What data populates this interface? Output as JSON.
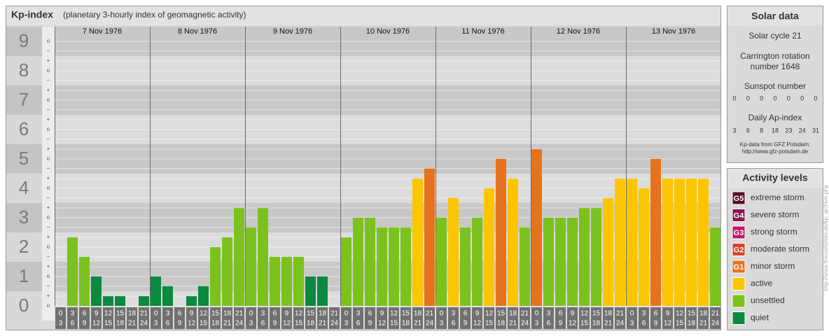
{
  "chart_data": {
    "type": "bar",
    "title": "Kp-index",
    "subtitle": "(planetary 3-hourly index of geomagnetic activity)",
    "ylim": [
      -0.5,
      9.5
    ],
    "yticks": [
      0,
      1,
      2,
      3,
      4,
      5,
      6,
      7,
      8,
      9
    ],
    "minor_yticks": [
      {
        "value": 0,
        "label": "o"
      },
      {
        "value": 0.33,
        "label": "+"
      },
      {
        "value": 0.67,
        "label": "−"
      },
      {
        "value": 1,
        "label": "o"
      },
      {
        "value": 1.33,
        "label": "+"
      },
      {
        "value": 1.67,
        "label": "−"
      },
      {
        "value": 2,
        "label": "o"
      },
      {
        "value": 2.33,
        "label": "+"
      },
      {
        "value": 2.67,
        "label": "−"
      },
      {
        "value": 3,
        "label": "o"
      },
      {
        "value": 3.33,
        "label": "+"
      },
      {
        "value": 3.67,
        "label": "−"
      },
      {
        "value": 4,
        "label": "o"
      },
      {
        "value": 4.33,
        "label": "+"
      },
      {
        "value": 4.67,
        "label": "−"
      },
      {
        "value": 5,
        "label": "o"
      },
      {
        "value": 5.33,
        "label": "+"
      },
      {
        "value": 5.67,
        "label": "−"
      },
      {
        "value": 6,
        "label": "o"
      },
      {
        "value": 6.33,
        "label": "+"
      },
      {
        "value": 6.67,
        "label": "−"
      },
      {
        "value": 7,
        "label": "o"
      },
      {
        "value": 7.33,
        "label": "+"
      },
      {
        "value": 7.67,
        "label": "−"
      },
      {
        "value": 8,
        "label": "o"
      },
      {
        "value": 8.33,
        "label": "+"
      },
      {
        "value": 8.67,
        "label": "−"
      },
      {
        "value": 9,
        "label": "o"
      }
    ],
    "hours": {
      "start": [
        0,
        3,
        6,
        9,
        12,
        15,
        18,
        21
      ],
      "end": [
        3,
        6,
        9,
        12,
        15,
        18,
        21,
        24
      ]
    },
    "days": [
      {
        "date": "7 Nov 1976",
        "values": [
          0,
          2.33,
          1.67,
          1,
          0.33,
          0.33,
          0,
          0.33
        ],
        "colors": [
          "#0a8a3e",
          "#7cc21e",
          "#7cc21e",
          "#0a8a3e",
          "#0a8a3e",
          "#0a8a3e",
          "#0a8a3e",
          "#0a8a3e"
        ]
      },
      {
        "date": "8 Nov 1976",
        "values": [
          1,
          0.67,
          0,
          0.33,
          0.67,
          2,
          2.33,
          3.33
        ],
        "colors": [
          "#0a8a3e",
          "#0a8a3e",
          "#0a8a3e",
          "#0a8a3e",
          "#0a8a3e",
          "#7cc21e",
          "#7cc21e",
          "#7cc21e"
        ]
      },
      {
        "date": "9 Nov 1976",
        "values": [
          2.67,
          3.33,
          1.67,
          1.67,
          1.67,
          1,
          1,
          0
        ],
        "colors": [
          "#7cc21e",
          "#7cc21e",
          "#7cc21e",
          "#7cc21e",
          "#7cc21e",
          "#0a8a3e",
          "#0a8a3e",
          "#0a8a3e"
        ]
      },
      {
        "date": "10 Nov 1976",
        "values": [
          2.33,
          3,
          3,
          2.67,
          2.67,
          2.67,
          4.33,
          4.67
        ],
        "colors": [
          "#7cc21e",
          "#7cc21e",
          "#7cc21e",
          "#7cc21e",
          "#7cc21e",
          "#7cc21e",
          "#fbc600",
          "#e6731c"
        ]
      },
      {
        "date": "11 Nov 1976",
        "values": [
          3,
          3.67,
          2.67,
          3,
          4,
          5,
          4.33,
          2.67
        ],
        "colors": [
          "#7cc21e",
          "#fbc600",
          "#7cc21e",
          "#7cc21e",
          "#fbc600",
          "#e6731c",
          "#fbc600",
          "#7cc21e"
        ]
      },
      {
        "date": "12 Nov 1976",
        "values": [
          5.33,
          3,
          3,
          3,
          3.33,
          3.33,
          3.67,
          4.33
        ],
        "colors": [
          "#e6731c",
          "#7cc21e",
          "#7cc21e",
          "#7cc21e",
          "#7cc21e",
          "#7cc21e",
          "#fbc600",
          "#fbc600"
        ]
      },
      {
        "date": "13 Nov 1976",
        "values": [
          4.33,
          4,
          5,
          4.33,
          4.33,
          4.33,
          4.33,
          2.67
        ],
        "colors": [
          "#fbc600",
          "#fbc600",
          "#e6731c",
          "#fbc600",
          "#fbc600",
          "#fbc600",
          "#fbc600",
          "#7cc21e"
        ]
      }
    ]
  },
  "solar_data": {
    "title": "Solar data",
    "cycle": "Solar cycle 21",
    "carrington": [
      "Carrington rotation",
      "number 1648"
    ],
    "sunspot_label": "Sunspot number",
    "sunspot_numbers": [
      0,
      0,
      0,
      0,
      0,
      0,
      0
    ],
    "ap_label": "Daily Ap-index",
    "ap_values": [
      3,
      6,
      8,
      18,
      23,
      24,
      31
    ],
    "source": [
      "Kp-data from GFZ Potsdam:",
      "http://www.gfz-potsdam.de"
    ]
  },
  "activity_levels": {
    "title": "Activity levels",
    "levels": [
      {
        "badge": "G5",
        "name": "extreme storm",
        "color": "#5a0a2c"
      },
      {
        "badge": "G4",
        "name": "severe storm",
        "color": "#8a1450"
      },
      {
        "badge": "G3",
        "name": "strong storm",
        "color": "#c0176d"
      },
      {
        "badge": "G2",
        "name": "moderate storm",
        "color": "#d8432a"
      },
      {
        "badge": "G1",
        "name": "minor storm",
        "color": "#e6731c"
      },
      {
        "name": "active",
        "color": "#fbc600"
      },
      {
        "name": "unsettled",
        "color": "#7cc21e"
      },
      {
        "name": "quiet",
        "color": "#0a8a3e"
      }
    ]
  },
  "side_url": "http://www.theusefulsite.de/kp_archive.php"
}
